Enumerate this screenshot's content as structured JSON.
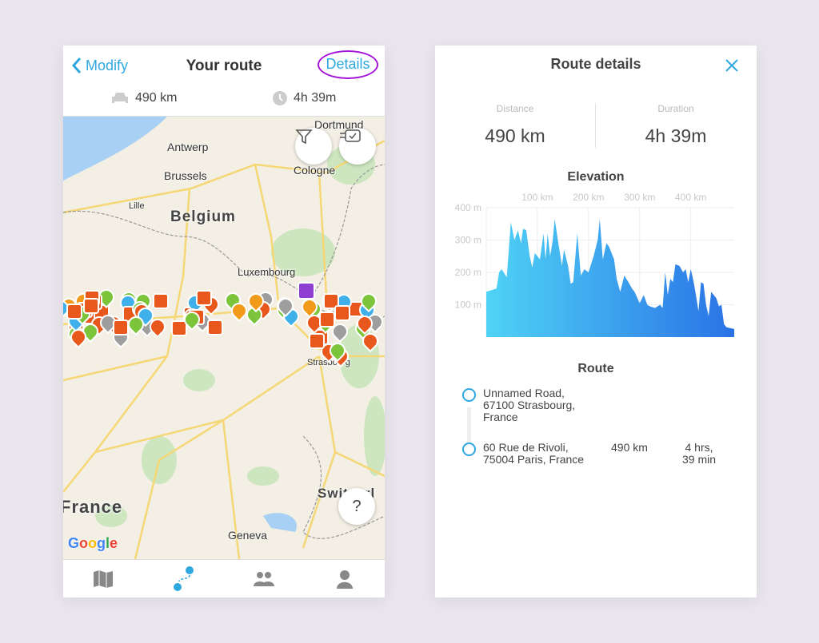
{
  "route_screen": {
    "back_label": "Modify",
    "title": "Your route",
    "details_label": "Details",
    "distance": "490 km",
    "duration": "4h 39m",
    "map": {
      "labels": {
        "dortmund": "Dortmund",
        "antwerp": "Antwerp",
        "brussels": "Brussels",
        "cologne": "Cologne",
        "lille": "Lille",
        "belgium": "Belgium",
        "luxembourg": "Luxembourg",
        "strasbourg": "Strasbourg",
        "france": "France",
        "switzerland": "Switzerl",
        "geneva": "Geneva"
      },
      "attribution": "Google",
      "help_label": "?"
    },
    "tabs": [
      "map-icon",
      "route-icon",
      "community-icon",
      "profile-icon"
    ],
    "active_tab": 1
  },
  "details_screen": {
    "title": "Route details",
    "distance_label": "Distance",
    "distance_value": "490 km",
    "duration_label": "Duration",
    "duration_value": "4h 39m",
    "elevation_title": "Elevation",
    "route_title": "Route",
    "stops": [
      {
        "address": [
          "Unnamed Road,",
          "67100 Strasbourg,",
          "France"
        ]
      },
      {
        "address": [
          "60 Rue de Rivoli,",
          "75004 Paris, France"
        ],
        "distance": "490 km",
        "duration": [
          "4 hrs,",
          "39 min"
        ]
      }
    ]
  },
  "colors": {
    "accent": "#2fa8e0",
    "highlight": "#a515d8",
    "gradient_start": "#4fd3f5",
    "gradient_end": "#2a72e6"
  },
  "chart_data": {
    "type": "area",
    "title": "Elevation",
    "x_tick_labels": [
      "100 km",
      "200 km",
      "300 km",
      "400 km"
    ],
    "x_ticks": [
      100,
      200,
      300,
      400
    ],
    "y_tick_labels": [
      "100 m",
      "200 m",
      "300 m",
      "400 m"
    ],
    "y_ticks": [
      100,
      200,
      300,
      400
    ],
    "xlim": [
      0,
      485
    ],
    "ylim": [
      0,
      400
    ],
    "grid": true,
    "x": [
      0,
      10,
      20,
      25,
      30,
      40,
      48,
      55,
      62,
      68,
      72,
      78,
      85,
      90,
      95,
      100,
      105,
      112,
      116,
      120,
      125,
      130,
      134,
      140,
      148,
      152,
      160,
      165,
      170,
      178,
      185,
      192,
      200,
      210,
      218,
      222,
      228,
      235,
      240,
      250,
      255,
      262,
      270,
      278,
      285,
      290,
      300,
      308,
      315,
      320,
      330,
      340,
      345,
      350,
      355,
      360,
      365,
      370,
      378,
      385,
      390,
      395,
      400,
      405,
      410,
      415,
      420,
      425,
      430,
      435,
      440,
      450,
      455,
      460,
      465,
      470,
      485
    ],
    "y": [
      140,
      145,
      150,
      200,
      210,
      185,
      355,
      300,
      330,
      290,
      335,
      330,
      250,
      215,
      260,
      250,
      240,
      320,
      240,
      320,
      250,
      300,
      365,
      300,
      220,
      270,
      220,
      165,
      170,
      320,
      190,
      210,
      200,
      250,
      300,
      365,
      240,
      290,
      280,
      240,
      180,
      140,
      190,
      170,
      150,
      140,
      105,
      130,
      100,
      95,
      90,
      100,
      90,
      200,
      130,
      180,
      170,
      225,
      220,
      200,
      210,
      170,
      210,
      175,
      130,
      80,
      170,
      165,
      100,
      65,
      140,
      120,
      95,
      100,
      40,
      30,
      25
    ]
  }
}
